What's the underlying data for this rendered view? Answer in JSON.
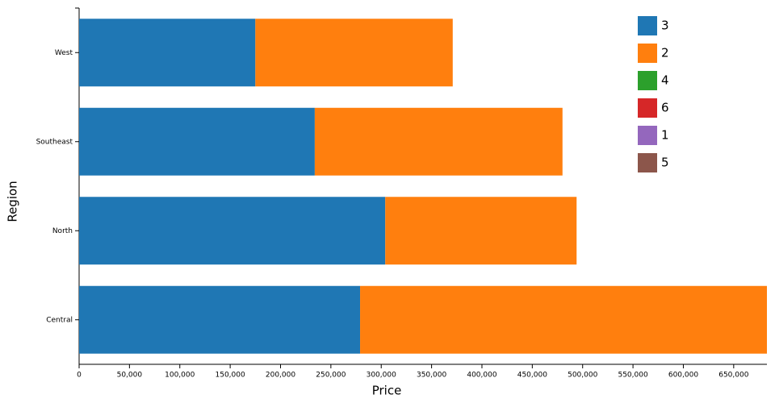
{
  "chart_data": {
    "type": "stacked-bar-horizontal",
    "x_label": "Price",
    "y_label": "Region",
    "categories": [
      "West",
      "Southeast",
      "North",
      "Central"
    ],
    "series": [
      {
        "name": "3",
        "color": "#1f77b4",
        "values": [
          175000,
          234000,
          304000,
          279000
        ]
      },
      {
        "name": "2",
        "color": "#ff7f0e",
        "values": [
          196000,
          246000,
          190000,
          404000
        ]
      },
      {
        "name": "4",
        "color": "#2ca02c",
        "values": [
          0,
          0,
          0,
          0
        ]
      },
      {
        "name": "6",
        "color": "#d62728",
        "values": [
          0,
          0,
          0,
          0
        ]
      },
      {
        "name": "1",
        "color": "#9467bd",
        "values": [
          0,
          0,
          0,
          0
        ]
      },
      {
        "name": "5",
        "color": "#8c564b",
        "values": [
          0,
          0,
          0,
          0
        ]
      }
    ],
    "xlim": [
      0,
      683000
    ],
    "xticks": [
      0,
      {
        "value": 50000,
        "label": "50,000"
      },
      {
        "value": 100000,
        "label": "100,000"
      },
      {
        "value": 150000,
        "label": "150,000"
      },
      {
        "value": 200000,
        "label": "200,000"
      },
      {
        "value": 250000,
        "label": "250,000"
      },
      {
        "value": 300000,
        "label": "300,000"
      },
      {
        "value": 350000,
        "label": "350,000"
      },
      {
        "value": 400000,
        "label": "400,000"
      },
      {
        "value": 450000,
        "label": "450,000"
      },
      {
        "value": 500000,
        "label": "500,000"
      },
      {
        "value": 550000,
        "label": "550,000"
      },
      {
        "value": 600000,
        "label": "600,000"
      },
      {
        "value": 650000,
        "label": "650,000"
      }
    ],
    "legend": "top-right"
  }
}
